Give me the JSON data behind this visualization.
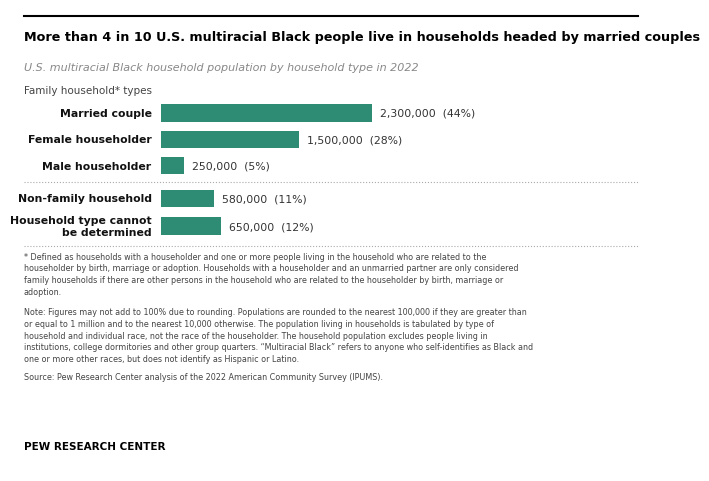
{
  "title": "More than 4 in 10 U.S. multiracial Black people live in households headed by married couples",
  "subtitle": "U.S. multiracial Black household population by household type in 2022",
  "section_label": "Family household* types",
  "categories": [
    "Married couple",
    "Female householder",
    "Male householder",
    "Non-family household",
    "Household type cannot\nbe determined"
  ],
  "values": [
    2300000,
    1500000,
    250000,
    580000,
    650000
  ],
  "labels": [
    "2,300,000  (44%)",
    "1,500,000  (28%)",
    "250,000  (5%)",
    "580,000  (11%)",
    "650,000  (12%)"
  ],
  "bar_color": "#2e8b74",
  "background_color": "#ffffff",
  "footnote1": "* Defined as households with a householder and one or more people living in the household who are related to the\nhouseholder by birth, marriage or adoption. Households with a householder and an unmarried partner are only considered\nfamily households if there are other persons in the household who are related to the householder by birth, marriage or\nadoption.",
  "footnote2": "Note: Figures may not add to 100% due to rounding. Populations are rounded to the nearest 100,000 if they are greater than\nor equal to 1 million and to the nearest 10,000 otherwise. The population living in households is tabulated by type of\nhousehold and individual race, not the race of the householder. The household population excludes people living in\ninstitutions, college dormitories and other group quarters. “Multiracial Black” refers to anyone who self-identifies as Black and\none or more other races, but does not identify as Hispanic or Latino.",
  "footnote3": "Source: Pew Research Center analysis of the 2022 American Community Survey (IPUMS).",
  "branding": "PEW RESEARCH CENTER",
  "max_value": 2300000
}
